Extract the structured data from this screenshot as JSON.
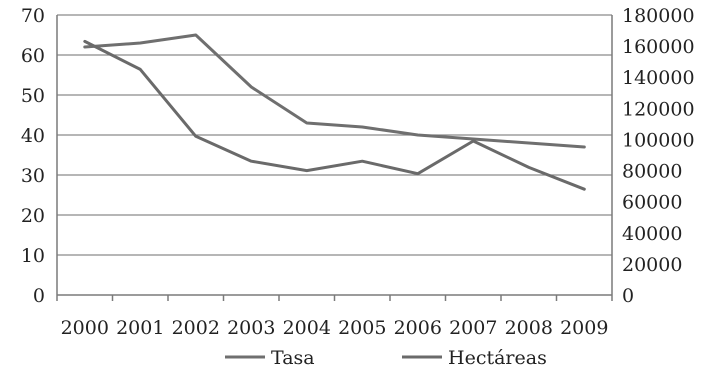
{
  "chart_data": {
    "type": "line",
    "title": "",
    "xlabel": "",
    "ylabel": "",
    "categories": [
      "2000",
      "2001",
      "2002",
      "2003",
      "2004",
      "2005",
      "2006",
      "2007",
      "2008",
      "2009"
    ],
    "series": [
      {
        "name": "Tasa",
        "axis": "left",
        "values": [
          62,
          63,
          65,
          52,
          43,
          42,
          40,
          39,
          38,
          37
        ]
      },
      {
        "name": "Hectáreas",
        "axis": "right",
        "values": [
          163000,
          145000,
          102000,
          86000,
          80000,
          86000,
          78000,
          99000,
          82000,
          68000
        ]
      }
    ],
    "y_left": {
      "lim": [
        0,
        70
      ],
      "ticks": [
        "0",
        "10",
        "20",
        "30",
        "40",
        "50",
        "60",
        "70"
      ]
    },
    "y_right": {
      "lim": [
        0,
        180000
      ],
      "ticks": [
        "0",
        "20000",
        "40000",
        "60000",
        "80000",
        "100000",
        "120000",
        "140000",
        "160000",
        "180000"
      ]
    },
    "grid": true,
    "legend_position": "bottom",
    "colors": {
      "Tasa": "#6f6f6f",
      "Hectáreas": "#6a6a6a"
    }
  }
}
